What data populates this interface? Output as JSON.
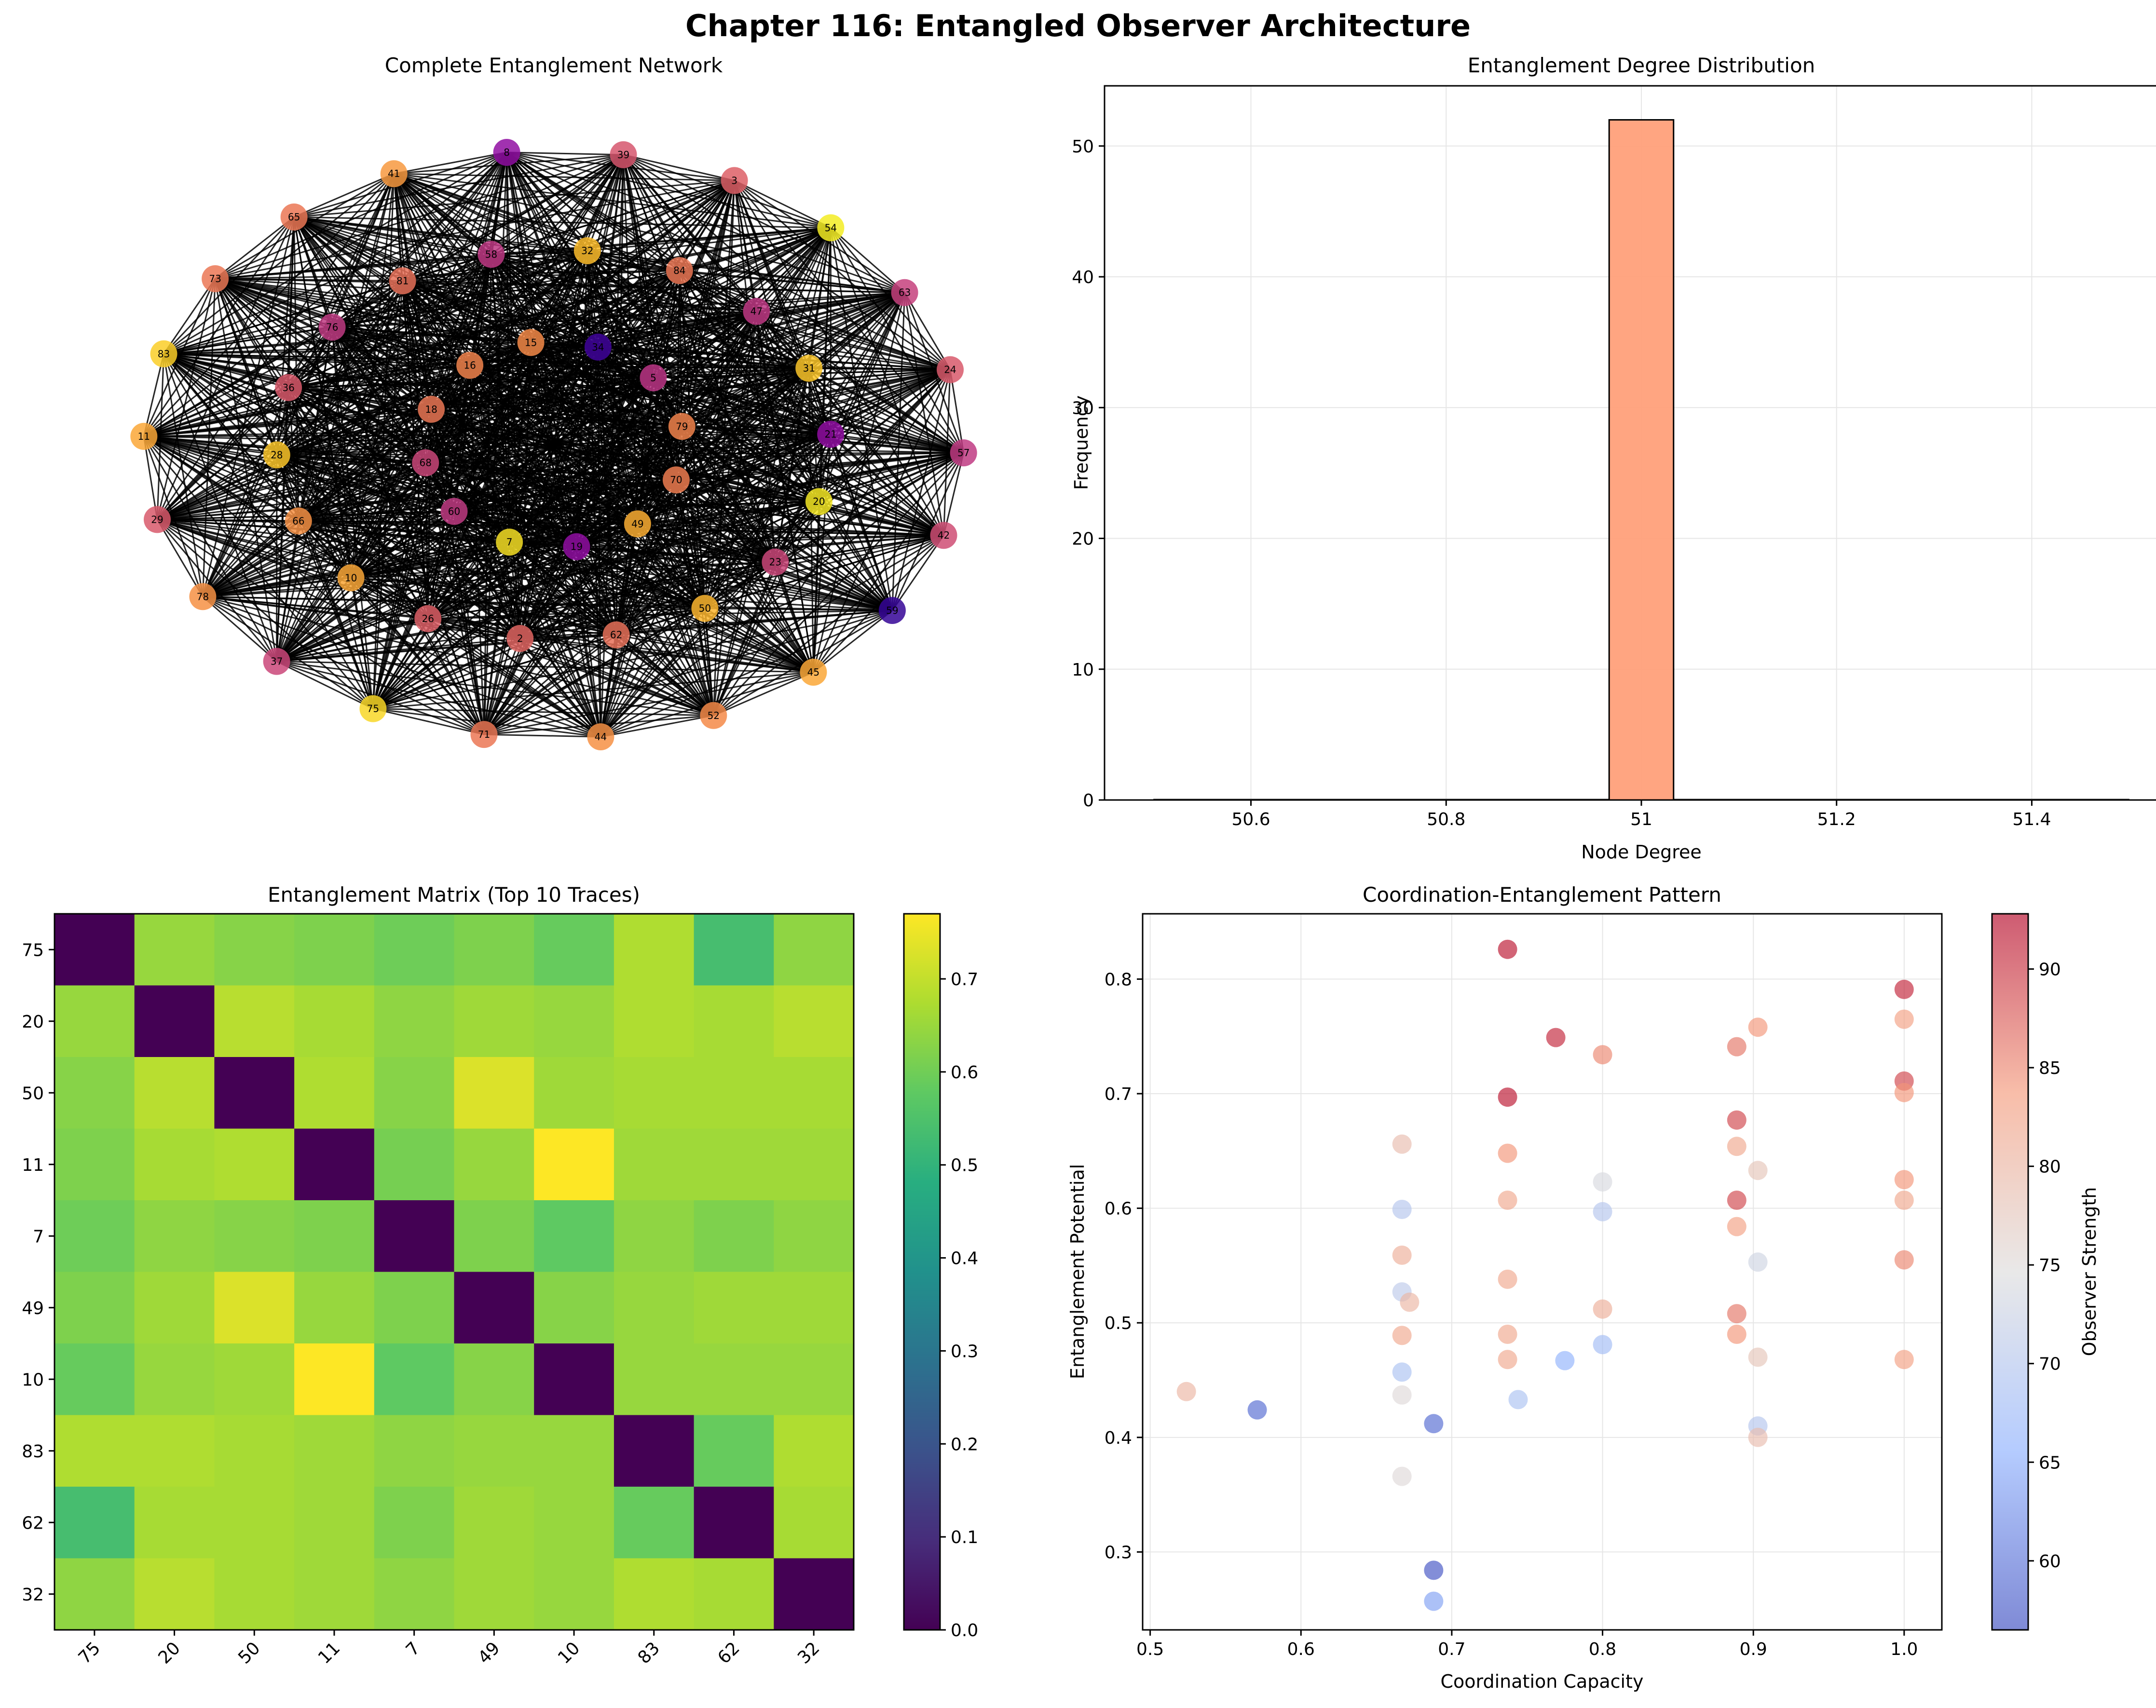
{
  "figure_title": "Chapter 116: Entangled Observer Architecture",
  "colors": {
    "axis": "#000000",
    "grid": "#e6e6e6",
    "edge": "#000000",
    "hist_bar": "#ffa07a"
  },
  "chart_data": [
    {
      "type": "network",
      "title": "Complete Entanglement Network",
      "description_note": "52 nodes, each with degree 51",
      "nodes": [
        {
          "id": "39",
          "c": 0.55
        },
        {
          "id": "3",
          "c": 0.58
        },
        {
          "id": "54",
          "c": 0.97
        },
        {
          "id": "63",
          "c": 0.48
        },
        {
          "id": "24",
          "c": 0.56
        },
        {
          "id": "57",
          "c": 0.46
        },
        {
          "id": "42",
          "c": 0.52
        },
        {
          "id": "59",
          "c": 0.08
        },
        {
          "id": "45",
          "c": 0.8
        },
        {
          "id": "52",
          "c": 0.72
        },
        {
          "id": "44",
          "c": 0.74
        },
        {
          "id": "71",
          "c": 0.66
        },
        {
          "id": "75",
          "c": 0.92
        },
        {
          "id": "37",
          "c": 0.5
        },
        {
          "id": "78",
          "c": 0.74
        },
        {
          "id": "29",
          "c": 0.56
        },
        {
          "id": "11",
          "c": 0.8
        },
        {
          "id": "83",
          "c": 0.9
        },
        {
          "id": "73",
          "c": 0.66
        },
        {
          "id": "65",
          "c": 0.66
        },
        {
          "id": "41",
          "c": 0.76
        },
        {
          "id": "8",
          "c": 0.3
        },
        {
          "id": "84",
          "c": 0.66
        },
        {
          "id": "47",
          "c": 0.45
        },
        {
          "id": "31",
          "c": 0.88
        },
        {
          "id": "21",
          "c": 0.3
        },
        {
          "id": "20",
          "c": 0.96
        },
        {
          "id": "23",
          "c": 0.5
        },
        {
          "id": "50",
          "c": 0.84
        },
        {
          "id": "62",
          "c": 0.64
        },
        {
          "id": "2",
          "c": 0.6
        },
        {
          "id": "26",
          "c": 0.58
        },
        {
          "id": "10",
          "c": 0.8
        },
        {
          "id": "66",
          "c": 0.74
        },
        {
          "id": "28",
          "c": 0.88
        },
        {
          "id": "36",
          "c": 0.56
        },
        {
          "id": "76",
          "c": 0.46
        },
        {
          "id": "81",
          "c": 0.64
        },
        {
          "id": "58",
          "c": 0.45
        },
        {
          "id": "32",
          "c": 0.86
        },
        {
          "id": "5",
          "c": 0.44
        },
        {
          "id": "79",
          "c": 0.7
        },
        {
          "id": "70",
          "c": 0.68
        },
        {
          "id": "49",
          "c": 0.82
        },
        {
          "id": "19",
          "c": 0.3
        },
        {
          "id": "7",
          "c": 0.94
        },
        {
          "id": "60",
          "c": 0.46
        },
        {
          "id": "68",
          "c": 0.5
        },
        {
          "id": "18",
          "c": 0.66
        },
        {
          "id": "16",
          "c": 0.7
        },
        {
          "id": "15",
          "c": 0.72
        },
        {
          "id": "34",
          "c": 0.1
        }
      ]
    },
    {
      "type": "bar",
      "title": "Entanglement Degree Distribution",
      "xlabel": "Node Degree",
      "ylabel": "Frequency",
      "xlim": [
        50.45,
        51.55
      ],
      "ylim": [
        0,
        54.6
      ],
      "xticks": [
        50.6,
        50.8,
        51.0,
        51.2,
        51.4
      ],
      "yticks": [
        0,
        10,
        20,
        30,
        40,
        50
      ],
      "bins": [
        {
          "x0": 50.967,
          "x1": 51.033,
          "count": 52
        }
      ],
      "baseline": [
        50.5,
        51.5
      ]
    },
    {
      "type": "heatmap",
      "title": "Entanglement Matrix (Top 10 Traces)",
      "labels": [
        "75",
        "20",
        "50",
        "11",
        "7",
        "49",
        "10",
        "83",
        "62",
        "32"
      ],
      "colorbar_ticks": [
        "0.0",
        "0.1",
        "0.2",
        "0.3",
        "0.4",
        "0.5",
        "0.6",
        "0.7"
      ],
      "vmin": 0,
      "vmax": 0.77,
      "matrix": [
        [
          0.0,
          0.65,
          0.63,
          0.62,
          0.6,
          0.62,
          0.59,
          0.68,
          0.54,
          0.64
        ],
        [
          0.65,
          0.0,
          0.69,
          0.67,
          0.64,
          0.66,
          0.65,
          0.68,
          0.67,
          0.69
        ],
        [
          0.63,
          0.69,
          0.0,
          0.68,
          0.63,
          0.73,
          0.66,
          0.67,
          0.67,
          0.67
        ],
        [
          0.62,
          0.67,
          0.68,
          0.0,
          0.61,
          0.65,
          0.77,
          0.66,
          0.66,
          0.66
        ],
        [
          0.6,
          0.64,
          0.63,
          0.62,
          0.0,
          0.62,
          0.58,
          0.64,
          0.62,
          0.64
        ],
        [
          0.62,
          0.66,
          0.73,
          0.65,
          0.62,
          0.0,
          0.63,
          0.65,
          0.66,
          0.66
        ],
        [
          0.59,
          0.65,
          0.66,
          0.77,
          0.58,
          0.63,
          0.0,
          0.65,
          0.65,
          0.65
        ],
        [
          0.68,
          0.68,
          0.67,
          0.66,
          0.64,
          0.65,
          0.65,
          0.0,
          0.59,
          0.68
        ],
        [
          0.54,
          0.67,
          0.67,
          0.66,
          0.62,
          0.66,
          0.65,
          0.59,
          0.0,
          0.67
        ],
        [
          0.64,
          0.69,
          0.67,
          0.66,
          0.64,
          0.66,
          0.65,
          0.68,
          0.67,
          0.0
        ]
      ]
    },
    {
      "type": "scatter",
      "title": "Coordination-Entanglement Pattern",
      "xlabel": "Coordination Capacity",
      "ylabel": "Entanglement Potential",
      "colorbar_label": "Observer Strength",
      "xlim": [
        0.495,
        1.025
      ],
      "ylim": [
        0.232,
        0.857
      ],
      "xticks": [
        "0.5",
        "0.6",
        "0.7",
        "0.8",
        "0.9",
        "1.0"
      ],
      "yticks": [
        "0.3",
        "0.4",
        "0.5",
        "0.6",
        "0.7",
        "0.8"
      ],
      "colorbar_ticks": [
        "60",
        "65",
        "70",
        "75",
        "80",
        "85",
        "90"
      ],
      "cmin": 56.5,
      "cmax": 92.8,
      "points": [
        {
          "x": 0.737,
          "y": 0.826,
          "c": 92
        },
        {
          "x": 0.769,
          "y": 0.749,
          "c": 91
        },
        {
          "x": 0.737,
          "y": 0.697,
          "c": 92
        },
        {
          "x": 0.8,
          "y": 0.734,
          "c": 85
        },
        {
          "x": 0.737,
          "y": 0.648,
          "c": 84
        },
        {
          "x": 0.667,
          "y": 0.656,
          "c": 79
        },
        {
          "x": 0.737,
          "y": 0.607,
          "c": 82
        },
        {
          "x": 0.8,
          "y": 0.623,
          "c": 74
        },
        {
          "x": 0.8,
          "y": 0.597,
          "c": 70
        },
        {
          "x": 0.667,
          "y": 0.599,
          "c": 70
        },
        {
          "x": 0.667,
          "y": 0.559,
          "c": 81
        },
        {
          "x": 0.737,
          "y": 0.538,
          "c": 82
        },
        {
          "x": 0.667,
          "y": 0.527,
          "c": 71
        },
        {
          "x": 0.672,
          "y": 0.518,
          "c": 80
        },
        {
          "x": 0.8,
          "y": 0.512,
          "c": 81
        },
        {
          "x": 0.667,
          "y": 0.489,
          "c": 82
        },
        {
          "x": 0.737,
          "y": 0.49,
          "c": 82
        },
        {
          "x": 0.8,
          "y": 0.481,
          "c": 68
        },
        {
          "x": 0.737,
          "y": 0.468,
          "c": 82
        },
        {
          "x": 0.775,
          "y": 0.467,
          "c": 66
        },
        {
          "x": 0.667,
          "y": 0.457,
          "c": 69
        },
        {
          "x": 0.667,
          "y": 0.437,
          "c": 75
        },
        {
          "x": 0.744,
          "y": 0.433,
          "c": 69
        },
        {
          "x": 0.524,
          "y": 0.44,
          "c": 80
        },
        {
          "x": 0.571,
          "y": 0.424,
          "c": 59
        },
        {
          "x": 0.688,
          "y": 0.412,
          "c": 59
        },
        {
          "x": 0.667,
          "y": 0.366,
          "c": 75
        },
        {
          "x": 0.688,
          "y": 0.284,
          "c": 57
        },
        {
          "x": 0.688,
          "y": 0.257,
          "c": 64
        },
        {
          "x": 0.903,
          "y": 0.758,
          "c": 84
        },
        {
          "x": 0.889,
          "y": 0.741,
          "c": 86
        },
        {
          "x": 0.889,
          "y": 0.677,
          "c": 89
        },
        {
          "x": 0.889,
          "y": 0.654,
          "c": 82
        },
        {
          "x": 0.903,
          "y": 0.633,
          "c": 78
        },
        {
          "x": 0.889,
          "y": 0.607,
          "c": 89
        },
        {
          "x": 0.889,
          "y": 0.584,
          "c": 83
        },
        {
          "x": 0.903,
          "y": 0.553,
          "c": 73
        },
        {
          "x": 0.889,
          "y": 0.508,
          "c": 86
        },
        {
          "x": 0.889,
          "y": 0.49,
          "c": 84
        },
        {
          "x": 0.903,
          "y": 0.47,
          "c": 78
        },
        {
          "x": 0.903,
          "y": 0.41,
          "c": 70
        },
        {
          "x": 0.903,
          "y": 0.4,
          "c": 79
        },
        {
          "x": 1.0,
          "y": 0.791,
          "c": 91
        },
        {
          "x": 1.0,
          "y": 0.765,
          "c": 83
        },
        {
          "x": 1.0,
          "y": 0.711,
          "c": 89
        },
        {
          "x": 1.0,
          "y": 0.701,
          "c": 84
        },
        {
          "x": 1.0,
          "y": 0.625,
          "c": 84
        },
        {
          "x": 1.0,
          "y": 0.607,
          "c": 82
        },
        {
          "x": 1.0,
          "y": 0.555,
          "c": 85
        },
        {
          "x": 1.0,
          "y": 0.468,
          "c": 83
        }
      ]
    }
  ]
}
